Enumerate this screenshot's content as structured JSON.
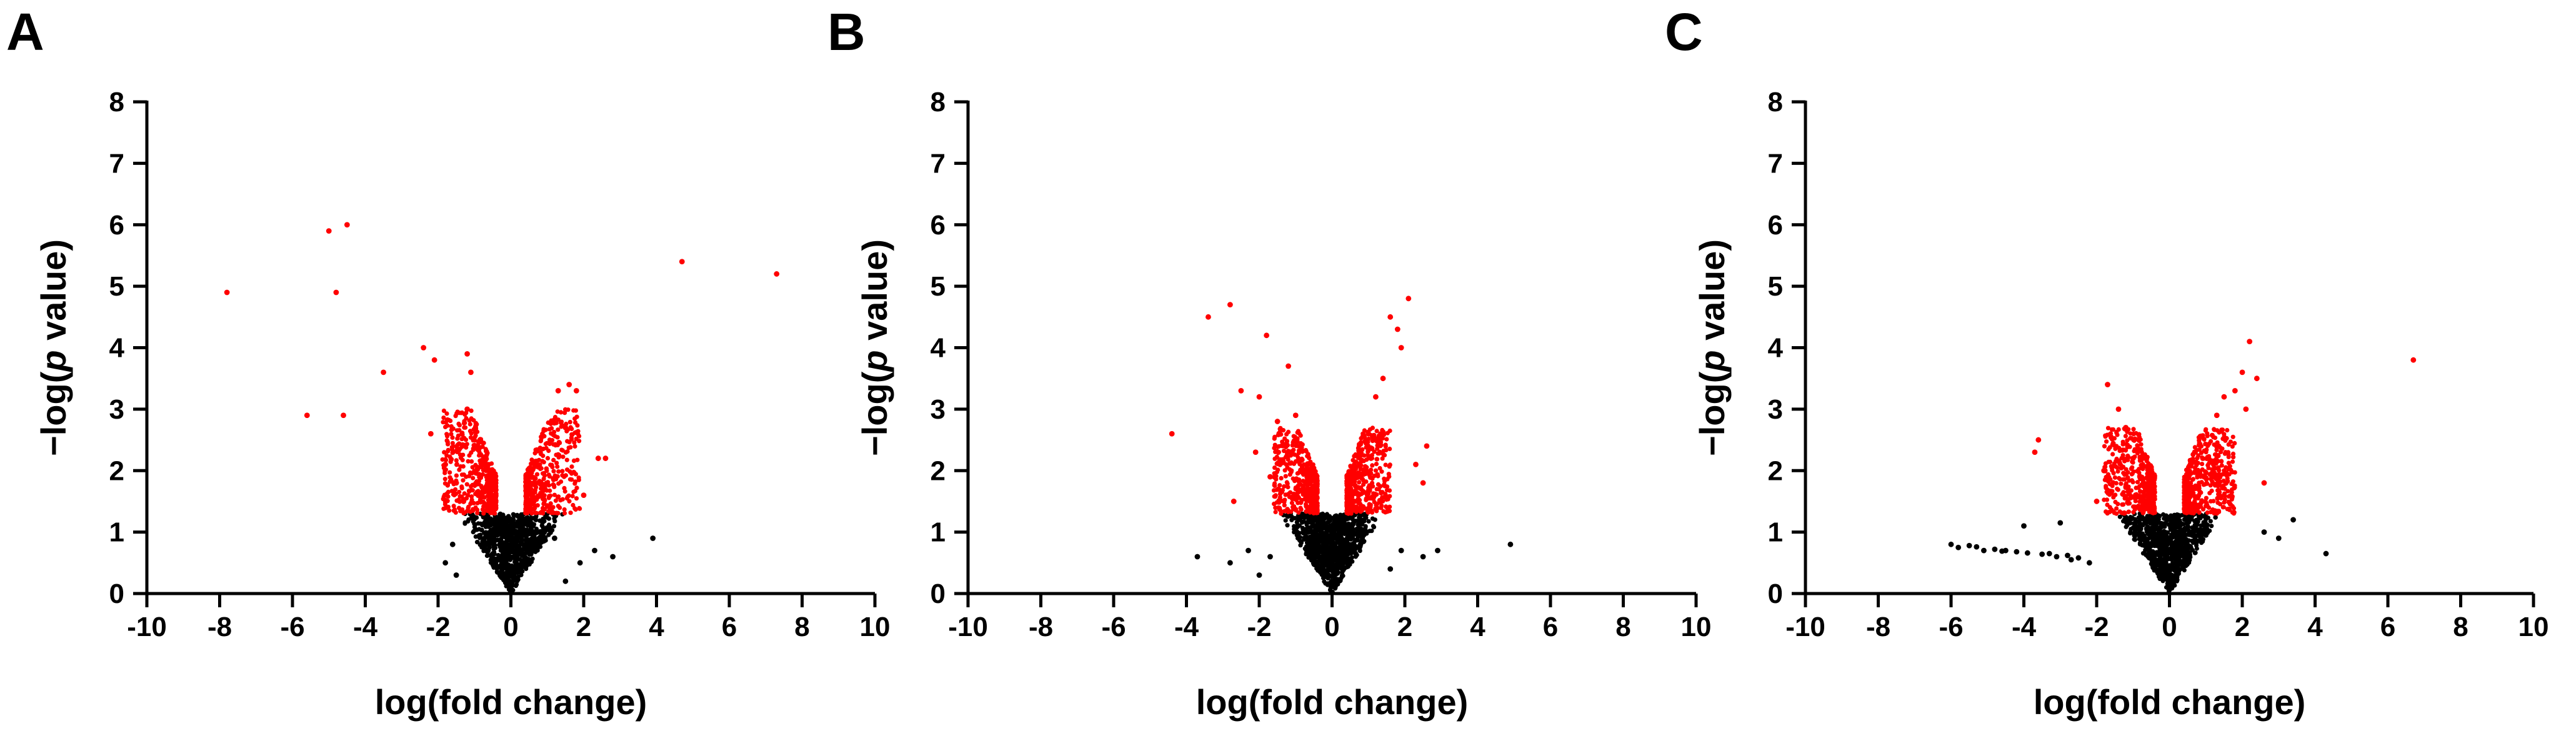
{
  "colors": {
    "significant": "#ff0000",
    "not_significant": "#000000",
    "axis": "#000000"
  },
  "chart_data": [
    {
      "type": "scatter",
      "panel_label": "A",
      "xlabel": "log(fold change)",
      "ylabel_prefix": "−log(",
      "ylabel_italic": "p",
      "ylabel_suffix": " value)",
      "xlim": [
        -10,
        10
      ],
      "ylim": [
        0,
        8
      ],
      "xticks": [
        -10,
        -8,
        -6,
        -4,
        -2,
        0,
        2,
        4,
        6,
        8,
        10
      ],
      "yticks": [
        0,
        1,
        2,
        3,
        4,
        5,
        6,
        7,
        8
      ],
      "grid": false,
      "significance_threshold": 1.3,
      "bulk_significant_fc_range": [
        0.4,
        1.9
      ],
      "bulk_significant_p_max": 3.0,
      "bulk_nonsignificant_fc_range": [
        0,
        1.8
      ],
      "series": [
        {
          "values_x": [
            -7.8,
            -5.6,
            -5.0,
            -4.8,
            -4.5,
            -4.6,
            -3.5,
            -2.4,
            -2.1,
            -2.2,
            -1.8,
            -1.5,
            -1.3,
            -1.2,
            -1.1,
            1.6,
            1.8,
            2.4,
            2.6,
            2.0,
            4.7,
            7.3,
            -1.2,
            1.3,
            1.5
          ],
          "values_y": [
            4.9,
            2.9,
            5.9,
            4.9,
            6.0,
            2.9,
            3.6,
            4.0,
            3.8,
            2.6,
            2.1,
            1.8,
            1.5,
            3.9,
            3.6,
            3.4,
            3.3,
            2.2,
            2.2,
            1.6,
            5.4,
            5.2,
            3.0,
            3.3,
            2.7
          ]
        },
        {
          "values_x": [
            -1.8,
            -1.6,
            1.2,
            1.9,
            2.3,
            2.8,
            3.9,
            -1.5,
            1.5
          ],
          "values_y": [
            0.5,
            0.8,
            0.9,
            0.5,
            0.7,
            0.6,
            0.9,
            0.3,
            0.2
          ]
        }
      ]
    },
    {
      "type": "scatter",
      "panel_label": "B",
      "xlabel": "log(fold change)",
      "ylabel_prefix": "−log(",
      "ylabel_italic": "p",
      "ylabel_suffix": " value)",
      "xlim": [
        -10,
        10
      ],
      "ylim": [
        0,
        8
      ],
      "xticks": [
        -10,
        -8,
        -6,
        -4,
        -2,
        0,
        2,
        4,
        6,
        8,
        10
      ],
      "yticks": [
        0,
        1,
        2,
        3,
        4,
        5,
        6,
        7,
        8
      ],
      "grid": false,
      "significance_threshold": 1.3,
      "bulk_significant_fc_range": [
        0.4,
        1.6
      ],
      "bulk_significant_p_max": 2.7,
      "bulk_nonsignificant_fc_range": [
        0,
        1.4
      ],
      "series": [
        {
          "values_x": [
            -4.4,
            -3.4,
            -2.8,
            -2.5,
            -2.7,
            -2.0,
            -1.8,
            -1.2,
            -1.0,
            1.6,
            1.8,
            2.1,
            1.9,
            2.6,
            2.5,
            2.3,
            1.4,
            1.2,
            -1.5,
            1.0,
            -2.1,
            -1.7
          ],
          "values_y": [
            2.6,
            4.5,
            4.7,
            3.3,
            1.5,
            3.2,
            4.2,
            3.7,
            2.9,
            4.5,
            4.3,
            4.8,
            4.0,
            2.4,
            1.8,
            2.1,
            3.5,
            3.2,
            2.8,
            2.6,
            2.3,
            1.9
          ]
        },
        {
          "values_x": [
            -3.7,
            -2.8,
            -2.3,
            -1.7,
            1.9,
            2.5,
            2.9,
            4.9,
            -2.0,
            1.6
          ],
          "values_y": [
            0.6,
            0.5,
            0.7,
            0.6,
            0.7,
            0.6,
            0.7,
            0.8,
            0.3,
            0.4
          ]
        }
      ]
    },
    {
      "type": "scatter",
      "panel_label": "C",
      "xlabel": "log(fold change)",
      "ylabel_prefix": "−log(",
      "ylabel_italic": "p",
      "ylabel_suffix": " value)",
      "xlim": [
        -10,
        10
      ],
      "ylim": [
        0,
        8
      ],
      "xticks": [
        -10,
        -8,
        -6,
        -4,
        -2,
        0,
        2,
        4,
        6,
        8,
        10
      ],
      "yticks": [
        0,
        1,
        2,
        3,
        4,
        5,
        6,
        7,
        8
      ],
      "grid": false,
      "significance_threshold": 1.3,
      "bulk_significant_fc_range": [
        0.4,
        1.8
      ],
      "bulk_significant_p_max": 2.7,
      "bulk_nonsignificant_fc_range": [
        0,
        1.6
      ],
      "series": [
        {
          "values_x": [
            -3.6,
            -3.7,
            -1.7,
            -1.4,
            -1.2,
            -1.0,
            1.5,
            1.8,
            2.0,
            2.2,
            2.4,
            2.1,
            6.7,
            1.3,
            2.6,
            -2.0,
            -1.8
          ],
          "values_y": [
            2.5,
            2.3,
            3.4,
            3.0,
            2.7,
            2.2,
            3.2,
            3.3,
            3.6,
            4.1,
            3.5,
            3.0,
            3.8,
            2.9,
            1.8,
            1.5,
            2.0
          ]
        },
        {
          "values_x": [
            -6.0,
            -5.8,
            -5.5,
            -5.1,
            -4.8,
            -4.5,
            -4.2,
            -3.9,
            -3.5,
            -3.1,
            -2.8,
            -2.5,
            -4.0,
            -3.0,
            2.6,
            3.4,
            4.3,
            -5.3,
            -4.6,
            -3.3,
            -2.2,
            -2.7,
            3.0
          ],
          "values_y": [
            0.8,
            0.75,
            0.78,
            0.7,
            0.72,
            0.7,
            0.68,
            0.66,
            0.64,
            0.6,
            0.62,
            0.58,
            1.1,
            1.15,
            1.0,
            1.2,
            0.65,
            0.76,
            0.69,
            0.65,
            0.5,
            0.55,
            0.9
          ]
        }
      ]
    }
  ]
}
